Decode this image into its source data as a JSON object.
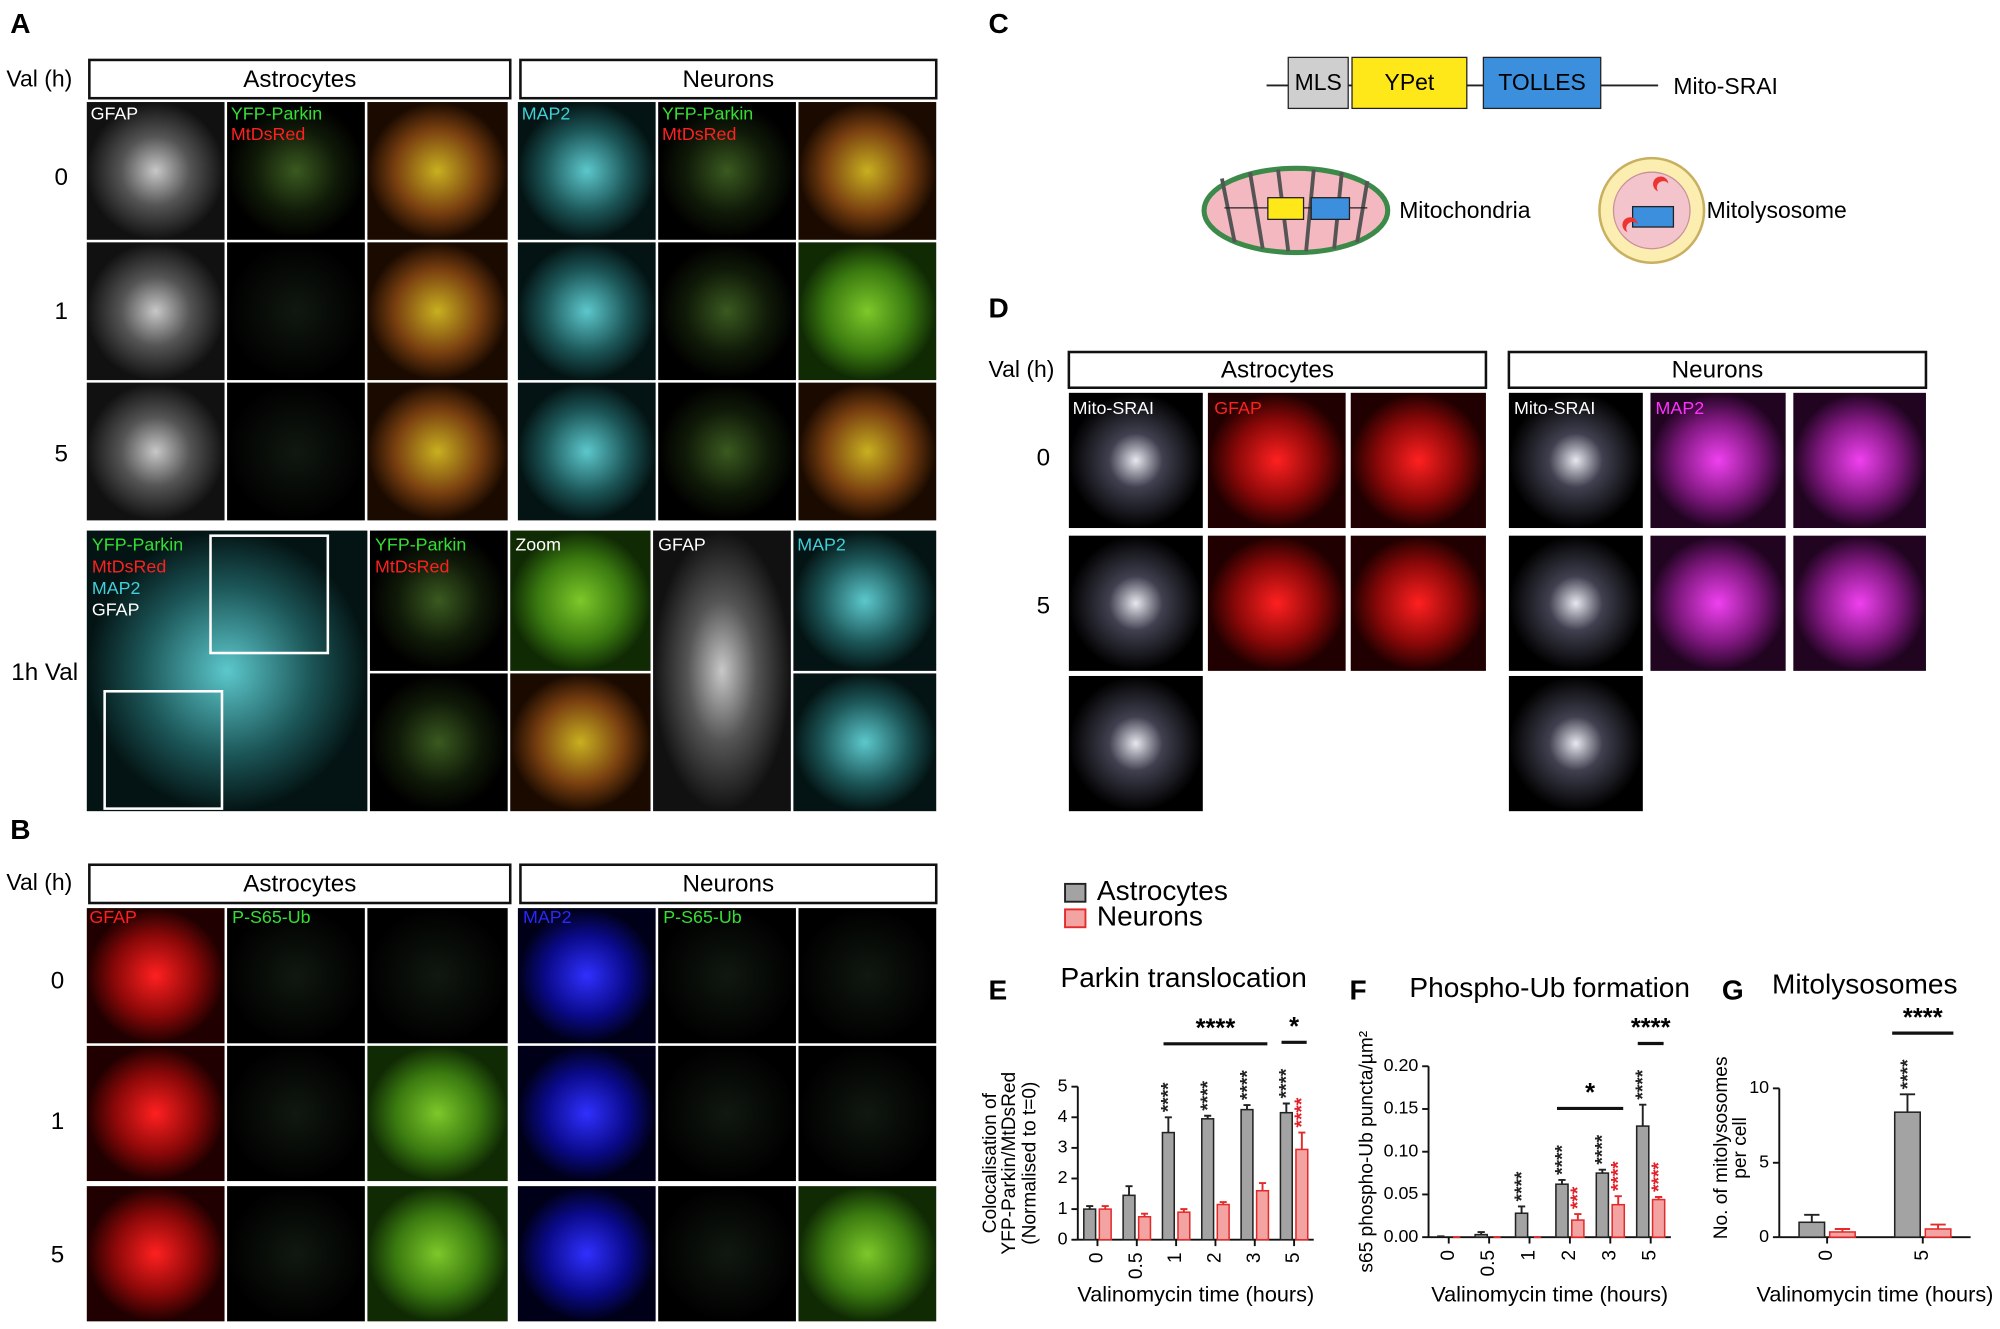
{
  "panels": {
    "a": {
      "letter": "A",
      "val": "Val (h)",
      "headers": [
        "Astrocytes",
        "Neurons"
      ],
      "rows": [
        "0",
        "1",
        "5",
        "1h Val"
      ],
      "labels": [
        "GFAP",
        "YFP-Parkin",
        "MtDsRed",
        "MAP2",
        "YFP-Parkin",
        "MtDsRed",
        "YFP-Parkin",
        "MtDsRed",
        "MAP2",
        "GFAP",
        "YFP-Parkin",
        "MtDsRed",
        "Zoom",
        "GFAP",
        "MAP2"
      ]
    },
    "b": {
      "letter": "B",
      "val": "Val (h)",
      "headers": [
        "Astrocytes",
        "Neurons"
      ],
      "rows": [
        "0",
        "1",
        "5"
      ],
      "labels": [
        "GFAP",
        "P-S65-Ub",
        "MAP2",
        "P-S65-Ub"
      ]
    },
    "c": {
      "letter": "C",
      "boxes": [
        "MLS",
        "YPet",
        "TOLLES"
      ],
      "construct": "Mito-SRAI",
      "mitochondria": "Mitochondria",
      "mitolysosome": "Mitolysosome"
    },
    "d": {
      "letter": "D",
      "val": "Val (h)",
      "headers": [
        "Astrocytes",
        "Neurons"
      ],
      "rows": [
        "0",
        "5"
      ],
      "labels": [
        "Mito-SRAI",
        "GFAP",
        "Mito-SRAI",
        "MAP2"
      ]
    }
  },
  "chart_data": [
    {
      "type": "bar",
      "label": "E",
      "title": "Parkin translocation",
      "xlabel": "Valinomycin time (hours)",
      "ylabel": [
        "Colocalisation of",
        "YFP-Parkin/MtDsRed",
        "(Normalised to t=0)"
      ],
      "categories": [
        "0",
        "0.5",
        "1",
        "2",
        "3",
        "5"
      ],
      "series": [
        {
          "name": "Astrocytes",
          "color": "#a3a3a3",
          "edgecolor": "#222222",
          "values": [
            1.0,
            1.45,
            3.5,
            3.95,
            4.25,
            4.15
          ],
          "errors": [
            0.1,
            0.3,
            0.5,
            0.1,
            0.15,
            0.3
          ]
        },
        {
          "name": "Neurons",
          "color": "#f4a3a3",
          "edgecolor": "#e32b2b",
          "values": [
            1.0,
            0.75,
            0.9,
            1.15,
            1.6,
            2.95
          ],
          "errors": [
            0.1,
            0.1,
            0.1,
            0.08,
            0.25,
            0.55
          ]
        }
      ],
      "ylim": [
        0,
        5
      ],
      "yticks": [
        0,
        1,
        2,
        3,
        4,
        5
      ],
      "annotations": [
        {
          "text": "****",
          "series": "Astrocytes",
          "category": "1",
          "color": "#222222"
        },
        {
          "text": "****",
          "series": "Astrocytes",
          "category": "2",
          "color": "#222222"
        },
        {
          "text": "****",
          "series": "Astrocytes",
          "category": "3",
          "color": "#222222"
        },
        {
          "text": "****",
          "series": "Astrocytes",
          "category": "5",
          "color": "#222222"
        },
        {
          "text": "****",
          "series": "Neurons",
          "category": "5",
          "color": "#e3202a"
        }
      ],
      "brackets": [
        {
          "text": "****",
          "from": "1",
          "to": "3"
        },
        {
          "text": "*",
          "from": "5",
          "to": "5"
        }
      ]
    },
    {
      "type": "bar",
      "label": "F",
      "title": "Phospho-Ub formation",
      "xlabel": "Valinomycin time (hours)",
      "ylabel": [
        "s65 phospho-Ub puncta/µm²"
      ],
      "categories": [
        "0",
        "0.5",
        "1",
        "2",
        "3",
        "5"
      ],
      "series": [
        {
          "name": "Astrocytes",
          "color": "#a3a3a3",
          "edgecolor": "#222222",
          "values": [
            0.0,
            0.003,
            0.028,
            0.062,
            0.075,
            0.13
          ],
          "errors": [
            0.001,
            0.003,
            0.008,
            0.005,
            0.004,
            0.025
          ]
        },
        {
          "name": "Neurons",
          "color": "#f4a3a3",
          "edgecolor": "#e32b2b",
          "values": [
            0.0,
            0.0,
            0.0,
            0.02,
            0.038,
            0.044
          ],
          "errors": [
            0.0,
            0.0,
            0.0,
            0.007,
            0.01,
            0.003
          ]
        }
      ],
      "ylim": [
        0,
        0.2
      ],
      "yticks": [
        {
          "value": 0,
          "label": "0.00"
        },
        {
          "value": 0.05,
          "label": "0.05"
        },
        {
          "value": 0.1,
          "label": "0.10"
        },
        {
          "value": 0.15,
          "label": "0.15"
        },
        {
          "value": 0.2,
          "label": "0.20"
        }
      ],
      "annotations": [
        {
          "text": "****",
          "series": "Astrocytes",
          "category": "1",
          "color": "#222222"
        },
        {
          "text": "****",
          "series": "Astrocytes",
          "category": "2",
          "color": "#222222"
        },
        {
          "text": "****",
          "series": "Astrocytes",
          "category": "3",
          "color": "#222222"
        },
        {
          "text": "****",
          "series": "Astrocytes",
          "category": "5",
          "color": "#222222"
        },
        {
          "text": "***",
          "series": "Neurons",
          "category": "2",
          "color": "#e3202a"
        },
        {
          "text": "****",
          "series": "Neurons",
          "category": "3",
          "color": "#e3202a"
        },
        {
          "text": "****",
          "series": "Neurons",
          "category": "5",
          "color": "#e3202a"
        }
      ],
      "brackets": [
        {
          "text": "*",
          "from": "2",
          "to": "3"
        },
        {
          "text": "****",
          "from": "5",
          "to": "5"
        }
      ]
    },
    {
      "type": "bar",
      "label": "G",
      "title": "Mitolysosomes",
      "xlabel": "Valinomycin time (hours)",
      "ylabel": [
        "No. of mitolysosomes",
        "per cell"
      ],
      "categories": [
        "0",
        "5"
      ],
      "series": [
        {
          "name": "Astrocytes",
          "color": "#a3a3a3",
          "edgecolor": "#222222",
          "values": [
            1.0,
            8.4
          ],
          "errors": [
            0.5,
            1.2
          ]
        },
        {
          "name": "Neurons",
          "color": "#f4a3a3",
          "edgecolor": "#e32b2b",
          "values": [
            0.35,
            0.55
          ],
          "errors": [
            0.2,
            0.3
          ]
        }
      ],
      "ylim": [
        0,
        12
      ],
      "yticks": [
        0,
        5,
        10
      ],
      "annotations": [
        {
          "text": "****",
          "series": "Astrocytes",
          "category": "5",
          "color": "#222222"
        }
      ],
      "brackets": [
        {
          "text": "****",
          "from": "5",
          "to": "5"
        }
      ]
    }
  ]
}
